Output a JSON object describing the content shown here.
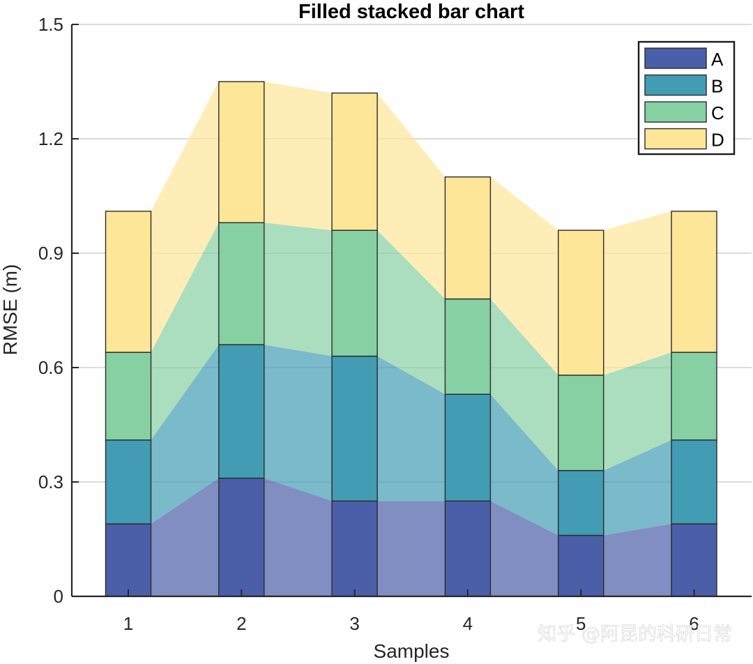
{
  "watermark": "知乎 @阿昆的科研日常",
  "chart_data": {
    "type": "bar",
    "subtype": "stacked-filled",
    "title": "Filled stacked bar chart",
    "xlabel": "Samples",
    "ylabel": "RMSE (m)",
    "categories": [
      "1",
      "2",
      "3",
      "4",
      "5",
      "6"
    ],
    "ylim": [
      0,
      1.5
    ],
    "yticks": [
      "0",
      "0.3",
      "0.6",
      "0.9",
      "1.2",
      "1.5"
    ],
    "grid": "horizontal",
    "legend_position": "top-right",
    "series": [
      {
        "name": "A",
        "color": "#4b5ea8",
        "values": [
          0.19,
          0.31,
          0.25,
          0.25,
          0.16,
          0.19
        ]
      },
      {
        "name": "B",
        "color": "#429cb3",
        "values": [
          0.22,
          0.35,
          0.38,
          0.28,
          0.17,
          0.22
        ]
      },
      {
        "name": "C",
        "color": "#86d0a3",
        "values": [
          0.23,
          0.32,
          0.33,
          0.25,
          0.25,
          0.23
        ]
      },
      {
        "name": "D",
        "color": "#fde697",
        "values": [
          0.37,
          0.37,
          0.36,
          0.32,
          0.38,
          0.37
        ]
      }
    ]
  }
}
